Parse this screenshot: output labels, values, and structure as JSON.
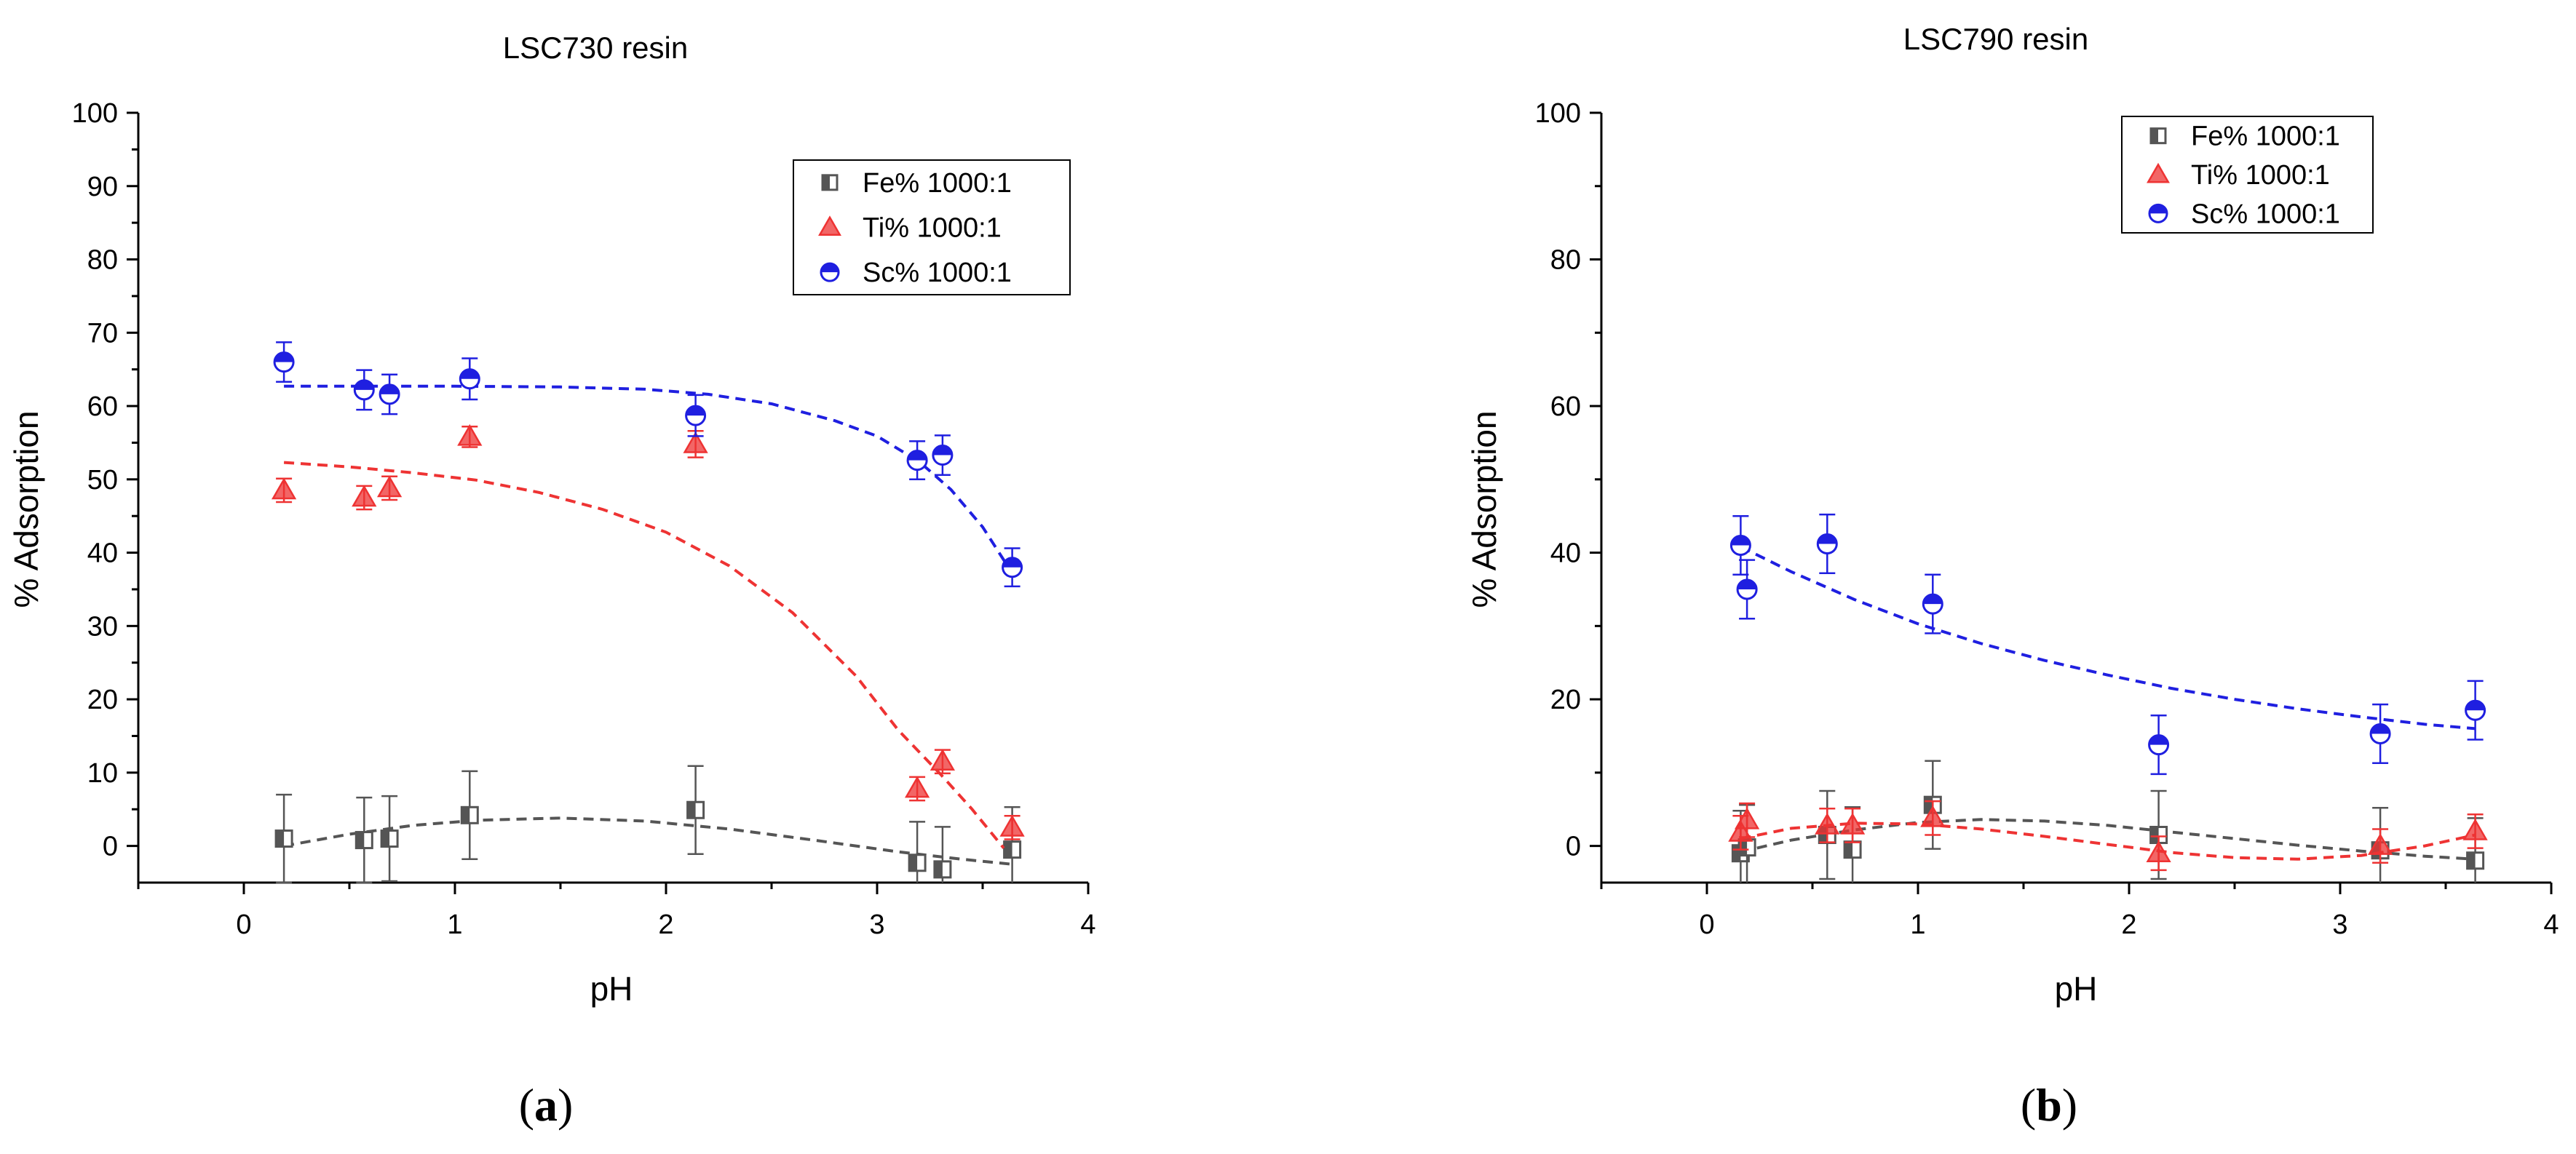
{
  "chart_data": [
    {
      "type": "scatter",
      "panel_label": "a",
      "title": "LSC730 resin",
      "xlabel": "pH",
      "ylabel": "% Adsorption",
      "xlim": [
        -0.5,
        4
      ],
      "ylim": [
        -5,
        100
      ],
      "xticks": [
        0,
        1,
        2,
        3,
        4
      ],
      "yticks": [
        0,
        10,
        20,
        30,
        40,
        50,
        60,
        70,
        80,
        90,
        100
      ],
      "legend_position": "top-right",
      "series": [
        {
          "name": "Fe% 1000:1",
          "color": "#555555",
          "marker": "half-square",
          "points": [
            {
              "x": 0.19,
              "y": 1.0,
              "err": 6.0
            },
            {
              "x": 0.57,
              "y": 0.8,
              "err": 5.8
            },
            {
              "x": 0.69,
              "y": 1.0,
              "err": 5.8
            },
            {
              "x": 1.07,
              "y": 4.2,
              "err": 6.0
            },
            {
              "x": 2.14,
              "y": 4.9,
              "err": 6.0
            },
            {
              "x": 3.19,
              "y": -2.3,
              "err": 5.6
            },
            {
              "x": 3.31,
              "y": -3.2,
              "err": 5.8
            },
            {
              "x": 3.64,
              "y": -0.5,
              "err": 5.8
            }
          ],
          "fit": [
            {
              "x": 0.19,
              "y": 0.0
            },
            {
              "x": 0.5,
              "y": 1.6
            },
            {
              "x": 0.8,
              "y": 2.8
            },
            {
              "x": 1.1,
              "y": 3.5
            },
            {
              "x": 1.5,
              "y": 3.8
            },
            {
              "x": 1.9,
              "y": 3.4
            },
            {
              "x": 2.3,
              "y": 2.3
            },
            {
              "x": 2.7,
              "y": 0.8
            },
            {
              "x": 3.1,
              "y": -0.8
            },
            {
              "x": 3.4,
              "y": -1.8
            },
            {
              "x": 3.64,
              "y": -2.5
            }
          ]
        },
        {
          "name": "Ti% 1000:1",
          "color": "#ee3333",
          "marker": "triangle",
          "points": [
            {
              "x": 0.19,
              "y": 48.5,
              "err": 1.6
            },
            {
              "x": 0.57,
              "y": 47.5,
              "err": 1.6
            },
            {
              "x": 0.69,
              "y": 48.8,
              "err": 1.6
            },
            {
              "x": 1.07,
              "y": 55.8,
              "err": 1.4
            },
            {
              "x": 2.14,
              "y": 54.8,
              "err": 1.8
            },
            {
              "x": 3.19,
              "y": 7.8,
              "err": 1.6
            },
            {
              "x": 3.31,
              "y": 11.5,
              "err": 1.6
            },
            {
              "x": 3.64,
              "y": 2.5,
              "err": 1.6
            }
          ],
          "fit": [
            {
              "x": 0.19,
              "y": 52.3
            },
            {
              "x": 0.5,
              "y": 51.7
            },
            {
              "x": 0.8,
              "y": 50.9
            },
            {
              "x": 1.1,
              "y": 49.9
            },
            {
              "x": 1.4,
              "y": 48.2
            },
            {
              "x": 1.7,
              "y": 45.9
            },
            {
              "x": 2.0,
              "y": 42.8
            },
            {
              "x": 2.3,
              "y": 38.2
            },
            {
              "x": 2.6,
              "y": 31.8
            },
            {
              "x": 2.9,
              "y": 23.2
            },
            {
              "x": 3.1,
              "y": 15.8
            },
            {
              "x": 3.3,
              "y": 9.8
            },
            {
              "x": 3.45,
              "y": 5.0
            },
            {
              "x": 3.6,
              "y": -0.3
            }
          ]
        },
        {
          "name": "Sc% 1000:1",
          "color": "#1f1fe0",
          "marker": "half-circle",
          "points": [
            {
              "x": 0.19,
              "y": 66.0,
              "err": 2.7
            },
            {
              "x": 0.57,
              "y": 62.2,
              "err": 2.7
            },
            {
              "x": 0.69,
              "y": 61.6,
              "err": 2.7
            },
            {
              "x": 1.07,
              "y": 63.7,
              "err": 2.8
            },
            {
              "x": 2.14,
              "y": 58.7,
              "err": 2.8
            },
            {
              "x": 3.19,
              "y": 52.6,
              "err": 2.6
            },
            {
              "x": 3.31,
              "y": 53.3,
              "err": 2.7
            },
            {
              "x": 3.64,
              "y": 38.0,
              "err": 2.6
            }
          ],
          "fit": [
            {
              "x": 0.19,
              "y": 62.7
            },
            {
              "x": 0.6,
              "y": 62.7
            },
            {
              "x": 1.0,
              "y": 62.7
            },
            {
              "x": 1.5,
              "y": 62.6
            },
            {
              "x": 1.9,
              "y": 62.3
            },
            {
              "x": 2.2,
              "y": 61.6
            },
            {
              "x": 2.5,
              "y": 60.3
            },
            {
              "x": 2.8,
              "y": 58.0
            },
            {
              "x": 3.0,
              "y": 55.9
            },
            {
              "x": 3.2,
              "y": 52.4
            },
            {
              "x": 3.35,
              "y": 48.6
            },
            {
              "x": 3.5,
              "y": 43.5
            },
            {
              "x": 3.64,
              "y": 37.2
            }
          ]
        }
      ]
    },
    {
      "type": "scatter",
      "panel_label": "b",
      "title": "LSC790 resin",
      "xlabel": "pH",
      "ylabel": "% Adsorption",
      "xlim": [
        -0.5,
        4
      ],
      "ylim": [
        -5,
        100
      ],
      "xticks": [
        0,
        1,
        2,
        3,
        4
      ],
      "yticks": [
        0,
        20,
        40,
        60,
        80,
        100
      ],
      "legend_position": "top-right",
      "series": [
        {
          "name": "Fe% 1000:1",
          "color": "#555555",
          "marker": "half-square",
          "points": [
            {
              "x": 0.16,
              "y": -1.0,
              "err": 5.8
            },
            {
              "x": 0.19,
              "y": -0.2,
              "err": 5.8
            },
            {
              "x": 0.57,
              "y": 1.5,
              "err": 6.0
            },
            {
              "x": 0.69,
              "y": -0.5,
              "err": 5.8
            },
            {
              "x": 1.07,
              "y": 5.6,
              "err": 6.0
            },
            {
              "x": 2.14,
              "y": 1.5,
              "err": 6.0
            },
            {
              "x": 3.19,
              "y": -0.6,
              "err": 5.8
            },
            {
              "x": 3.64,
              "y": -2.0,
              "err": 5.8
            }
          ],
          "fit": [
            {
              "x": 0.16,
              "y": -0.8
            },
            {
              "x": 0.4,
              "y": 0.8
            },
            {
              "x": 0.7,
              "y": 2.2
            },
            {
              "x": 1.0,
              "y": 3.2
            },
            {
              "x": 1.3,
              "y": 3.6
            },
            {
              "x": 1.6,
              "y": 3.4
            },
            {
              "x": 1.9,
              "y": 2.8
            },
            {
              "x": 2.2,
              "y": 1.9
            },
            {
              "x": 2.5,
              "y": 1.0
            },
            {
              "x": 2.8,
              "y": 0.1
            },
            {
              "x": 3.1,
              "y": -0.7
            },
            {
              "x": 3.4,
              "y": -1.4
            },
            {
              "x": 3.64,
              "y": -1.8
            }
          ]
        },
        {
          "name": "Ti% 1000:1",
          "color": "#ee3333",
          "marker": "triangle",
          "points": [
            {
              "x": 0.16,
              "y": 1.8,
              "err": 2.3
            },
            {
              "x": 0.19,
              "y": 3.5,
              "err": 2.3
            },
            {
              "x": 0.57,
              "y": 2.8,
              "err": 2.3
            },
            {
              "x": 0.69,
              "y": 2.8,
              "err": 2.3
            },
            {
              "x": 1.07,
              "y": 3.8,
              "err": 2.3
            },
            {
              "x": 2.14,
              "y": -1.0,
              "err": 2.3
            },
            {
              "x": 3.19,
              "y": 0.0,
              "err": 2.3
            },
            {
              "x": 3.64,
              "y": 2.0,
              "err": 2.3
            }
          ],
          "fit": [
            {
              "x": 0.16,
              "y": 1.0
            },
            {
              "x": 0.4,
              "y": 2.4
            },
            {
              "x": 0.7,
              "y": 3.1
            },
            {
              "x": 1.0,
              "y": 3.0
            },
            {
              "x": 1.3,
              "y": 2.3
            },
            {
              "x": 1.6,
              "y": 1.3
            },
            {
              "x": 1.9,
              "y": 0.2
            },
            {
              "x": 2.2,
              "y": -0.9
            },
            {
              "x": 2.5,
              "y": -1.6
            },
            {
              "x": 2.8,
              "y": -1.8
            },
            {
              "x": 3.1,
              "y": -1.3
            },
            {
              "x": 3.4,
              "y": 0.0
            },
            {
              "x": 3.64,
              "y": 1.5
            }
          ]
        },
        {
          "name": "Sc% 1000:1",
          "color": "#1f1fe0",
          "marker": "half-circle",
          "points": [
            {
              "x": 0.16,
              "y": 41.0,
              "err": 4.0
            },
            {
              "x": 0.19,
              "y": 35.0,
              "err": 4.0
            },
            {
              "x": 0.57,
              "y": 41.2,
              "err": 4.0
            },
            {
              "x": 1.07,
              "y": 33.0,
              "err": 4.0
            },
            {
              "x": 2.14,
              "y": 13.8,
              "err": 4.0
            },
            {
              "x": 3.19,
              "y": 15.3,
              "err": 4.0
            },
            {
              "x": 3.64,
              "y": 18.5,
              "err": 4.0
            }
          ],
          "fit": [
            {
              "x": 0.16,
              "y": 40.8
            },
            {
              "x": 0.4,
              "y": 37.4
            },
            {
              "x": 0.7,
              "y": 33.6
            },
            {
              "x": 1.0,
              "y": 30.3
            },
            {
              "x": 1.3,
              "y": 27.6
            },
            {
              "x": 1.6,
              "y": 25.3
            },
            {
              "x": 1.9,
              "y": 23.3
            },
            {
              "x": 2.2,
              "y": 21.5
            },
            {
              "x": 2.5,
              "y": 20.0
            },
            {
              "x": 2.8,
              "y": 18.7
            },
            {
              "x": 3.1,
              "y": 17.6
            },
            {
              "x": 3.4,
              "y": 16.6
            },
            {
              "x": 3.64,
              "y": 16.0
            }
          ]
        }
      ]
    }
  ]
}
